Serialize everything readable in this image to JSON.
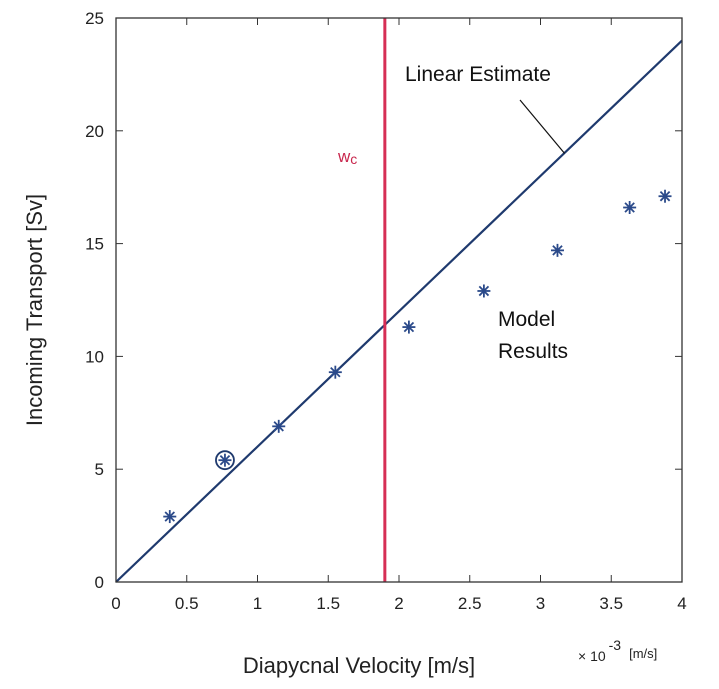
{
  "chart_data": {
    "type": "scatter",
    "xlabel": "Diapycnal Velocity [m/s]",
    "ylabel": "Incoming Transport [Sv]",
    "x_scale_label": "× 10",
    "x_scale_exponent": "-3",
    "x_scale_unit": "[m/s]",
    "xlim": [
      0,
      4
    ],
    "ylim": [
      0,
      25
    ],
    "x_ticks": [
      0,
      0.5,
      1,
      1.5,
      2,
      2.5,
      3,
      3.5,
      4
    ],
    "x_tick_labels": [
      "0",
      "0.5",
      "1",
      "1.5",
      "2",
      "2.5",
      "3",
      "3.5",
      "4"
    ],
    "y_ticks": [
      0,
      5,
      10,
      15,
      20,
      25
    ],
    "y_tick_labels": [
      "0",
      "5",
      "10",
      "15",
      "20",
      "25"
    ],
    "grid": false,
    "series": [
      {
        "name": "Model Results",
        "type": "scatter",
        "marker": "asterisk",
        "color": "#2b4a8a",
        "x": [
          0.38,
          0.77,
          1.15,
          1.55,
          2.07,
          2.6,
          3.12,
          3.63,
          3.88
        ],
        "y": [
          2.9,
          5.4,
          6.9,
          9.3,
          11.3,
          12.9,
          14.7,
          16.6,
          17.1
        ]
      },
      {
        "name": "Linear Estimate",
        "type": "line",
        "color": "#1f3a6e",
        "x": [
          0,
          4
        ],
        "y": [
          0,
          24
        ]
      }
    ],
    "highlighted_point": {
      "x": 0.77,
      "y": 5.4
    },
    "vertical_line": {
      "label": "w",
      "label_sub": "c",
      "x": 1.9,
      "color": "#d62e55"
    },
    "annotations": [
      {
        "text": "Linear Estimate",
        "leader_to": {
          "x": 3.17,
          "y": 19.0
        }
      },
      {
        "text": "Model Results"
      }
    ]
  }
}
